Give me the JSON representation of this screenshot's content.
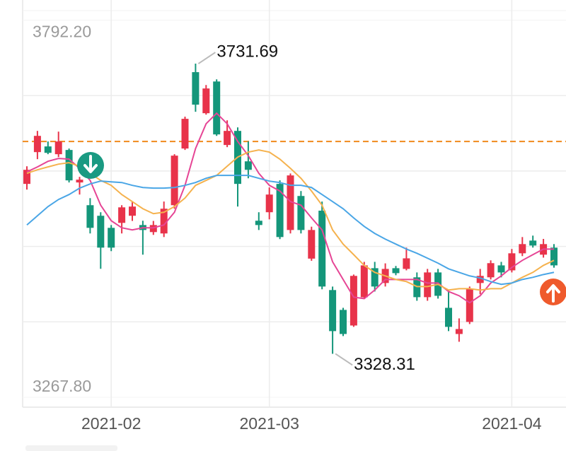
{
  "chart_data": {
    "type": "candlestick",
    "categories": [
      null,
      null,
      null,
      null,
      null,
      null,
      null,
      null,
      "2021-02",
      null,
      null,
      null,
      null,
      null,
      null,
      null,
      null,
      null,
      null,
      null,
      null,
      null,
      null,
      "2021-03",
      null,
      null,
      null,
      null,
      null,
      null,
      null,
      null,
      null,
      null,
      null,
      null,
      null,
      null,
      null,
      null,
      null,
      null,
      null,
      null,
      null,
      null,
      "2021-04",
      null,
      null,
      null,
      null
    ],
    "open": [
      3564.5,
      3608.7,
      3616.6,
      3605.8,
      3611.7,
      3566.5,
      3534.9,
      3520.2,
      3503.4,
      3510.3,
      3520.2,
      3507.3,
      3497.5,
      3495.6,
      3534.9,
      3613.7,
      3719.9,
      3662.8,
      3706.9,
      3618.6,
      3638.2,
      3595.9,
      3513.3,
      3525.1,
      3564.5,
      3500.4,
      3547.7,
      3460.6,
      3527.3,
      3416.9,
      3389.3,
      3367.6,
      3406.9,
      3447.3,
      3426.7,
      3447.3,
      3446.3,
      3434.6,
      3407,
      3441.4,
      3392.2,
      3355.8,
      3372.6,
      3426.7,
      3434.6,
      3451.2,
      3444.3,
      3468,
      3485.7,
      3466.1,
      3475.9
    ],
    "high": [
      3589,
      3638.2,
      3623.5,
      3637.2,
      3613.7,
      3574.3,
      3544.7,
      3525.1,
      3507.3,
      3534.9,
      3540,
      3513.3,
      3513,
      3540,
      3605.8,
      3658,
      3731.69,
      3702,
      3709.9,
      3652.9,
      3643.1,
      3623.5,
      3525.1,
      3559.6,
      3569.4,
      3579,
      3554.6,
      3505,
      3540,
      3421.8,
      3392.2,
      3438.5,
      3456.1,
      3456.1,
      3454,
      3450.4,
      3475.9,
      3441.4,
      3446.3,
      3446.3,
      3416.9,
      3377.5,
      3421.8,
      3446.3,
      3458.2,
      3456.1,
      3474,
      3490.6,
      3492.6,
      3488,
      3480.8
    ],
    "low": [
      3556.6,
      3598.9,
      3605.8,
      3601.8,
      3566.5,
      3549.7,
      3495.6,
      3446.4,
      3471,
      3495.6,
      3513,
      3466.1,
      3493.6,
      3490.6,
      3530,
      3611.7,
      3664.8,
      3660.8,
      3631.3,
      3615.6,
      3533,
      3572.3,
      3500.4,
      3515.2,
      3487.7,
      3495.6,
      3495.6,
      3457.6,
      3418,
      3328.31,
      3352.9,
      3365.7,
      3405,
      3414.9,
      3421.8,
      3437.5,
      3444.3,
      3402,
      3402,
      3405,
      3359.8,
      3345,
      3369.6,
      3411,
      3431.6,
      3434.6,
      3441.4,
      3464.1,
      3475.9,
      3462,
      3448
    ],
    "close": [
      3584.1,
      3631.3,
      3607.7,
      3623.5,
      3569.4,
      3570.4,
      3503.4,
      3475.9,
      3475.9,
      3531.9,
      3533,
      3500.4,
      3507.3,
      3530,
      3603.8,
      3655,
      3674.7,
      3697.2,
      3633.3,
      3638.2,
      3564.5,
      3584.1,
      3507.3,
      3549.7,
      3490.6,
      3576.3,
      3500.4,
      3500.4,
      3421.8,
      3359.8,
      3355.8,
      3436.6,
      3451.2,
      3421.8,
      3446.3,
      3440.4,
      3461,
      3407,
      3441.4,
      3408.9,
      3365.7,
      3362.7,
      3418.8,
      3436.6,
      3454.3,
      3441.4,
      3468,
      3480.8,
      3478.8,
      3480.8,
      3451.2
    ],
    "up_color": "#e8334a",
    "down_color": "#14967a",
    "ma_lines": [
      {
        "color": "#e64595",
        "values": [
          3581.2,
          3588.1,
          3595.9,
          3599.9,
          3598.9,
          3586.1,
          3569.4,
          3534.9,
          3513.3,
          3503.5,
          3500.5,
          3503.5,
          3503.5,
          3507.4,
          3525.1,
          3562.5,
          3613.7,
          3648.1,
          3662.8,
          3648.1,
          3623.5,
          3603.8,
          3579.2,
          3562.5,
          3554.6,
          3539.9,
          3534.9,
          3517.2,
          3500.5,
          3456.2,
          3431.6,
          3407.0,
          3405.0,
          3416.9,
          3431.6,
          3431.6,
          3431.6,
          3431.6,
          3426.7,
          3426.7,
          3414.9,
          3409.0,
          3399.2,
          3409.0,
          3426.7,
          3436.6,
          3448.4,
          3458.2,
          3466.1,
          3473.9,
          3473.9
        ]
      },
      {
        "color": "#f5b24e",
        "values": [
          3579.2,
          3584.1,
          3588.1,
          3592.0,
          3594.0,
          3589.1,
          3579.2,
          3569.4,
          3562.5,
          3549.7,
          3539.9,
          3530.0,
          3523.1,
          3525.1,
          3533.0,
          3544.8,
          3562.5,
          3569.4,
          3576.3,
          3589.1,
          3601.8,
          3608.7,
          3611.7,
          3608.7,
          3598.9,
          3586.1,
          3572.3,
          3554.6,
          3534.9,
          3500.5,
          3480.8,
          3466.1,
          3451.2,
          3441.5,
          3436.6,
          3431.6,
          3428.7,
          3421.8,
          3421.8,
          3424.8,
          3416.9,
          3418.8,
          3418.8,
          3416.9,
          3418.8,
          3418.8,
          3426.7,
          3434.6,
          3441.5,
          3451.2,
          3458.2
        ]
      },
      {
        "color": "#4aa6e6",
        "values": [
          3507.4,
          3520.2,
          3532.9,
          3542.8,
          3549.7,
          3558.6,
          3564.5,
          3568.4,
          3567.4,
          3566.4,
          3562.5,
          3559.5,
          3558.6,
          3558.6,
          3559.5,
          3562.5,
          3566.4,
          3572.3,
          3576.3,
          3576.3,
          3576.3,
          3576.3,
          3572.3,
          3568.4,
          3566.4,
          3562.5,
          3562.5,
          3559.5,
          3549.7,
          3539.9,
          3530.0,
          3517.2,
          3505.4,
          3495.6,
          3487.7,
          3480.8,
          3473.9,
          3468.0,
          3461.2,
          3454.3,
          3446.4,
          3441.5,
          3436.6,
          3433.6,
          3428.7,
          3424.8,
          3426.7,
          3431.6,
          3434.6,
          3438.5,
          3441.5
        ]
      }
    ],
    "reference_line": {
      "value": 3623.5,
      "color": "#f08a1c"
    },
    "ylim": [
      3267.8,
      3792.2
    ],
    "yticks": [
      {
        "value": 3792.2,
        "label": "3792.20"
      },
      {
        "value": 3267.8,
        "label": "3267.80"
      }
    ],
    "grid": true,
    "annotations": [
      {
        "index": 16,
        "at": "high"
      },
      {
        "index": 29,
        "at": "low"
      }
    ]
  }
}
